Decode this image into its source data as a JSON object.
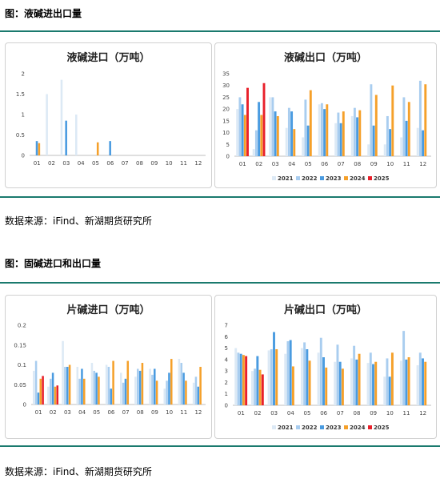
{
  "section1": {
    "title": "图：液碱进出口量",
    "source": "数据来源：iFind、新湖期货研究所"
  },
  "section2": {
    "title": "图：固碱进口和出口量",
    "source": "数据来源：iFind、新湖期货研究所"
  },
  "series_colors": {
    "2021": "#dce9f5",
    "2022": "#a9cdef",
    "2023": "#4a9be0",
    "2024": "#f5a02a",
    "2025": "#e8202a"
  },
  "chart_data": [
    {
      "type": "bar",
      "title": "液碱进口（万吨）",
      "categories": [
        "01",
        "02",
        "03",
        "04",
        "05",
        "06",
        "07",
        "08",
        "09",
        "10",
        "11",
        "12"
      ],
      "ylim": [
        0,
        2
      ],
      "yticks": [
        "0",
        "0.5",
        "1",
        "1.5",
        "2"
      ],
      "series": [
        {
          "name": "2021",
          "values": [
            0,
            1.5,
            1.85,
            1.0,
            0,
            0,
            0,
            0,
            0,
            0,
            0,
            0
          ]
        },
        {
          "name": "2022",
          "values": [
            0,
            0,
            0,
            0,
            0,
            0,
            0,
            0,
            0,
            0,
            0,
            0
          ]
        },
        {
          "name": "2023",
          "values": [
            0.35,
            0,
            0.85,
            0,
            0,
            0.35,
            0,
            0,
            0,
            0,
            0,
            0
          ]
        },
        {
          "name": "2024",
          "values": [
            0.3,
            0,
            0,
            0,
            0.32,
            0,
            0,
            0,
            0,
            0,
            0,
            0
          ]
        },
        {
          "name": "2025",
          "values": [
            0,
            0,
            0,
            0,
            0,
            0,
            0,
            0,
            0,
            0,
            0,
            0
          ]
        }
      ]
    },
    {
      "type": "bar",
      "title": "液碱出口（万吨）",
      "categories": [
        "01",
        "02",
        "03",
        "04",
        "05",
        "06",
        "07",
        "08",
        "09",
        "10",
        "11",
        "12"
      ],
      "ylim": [
        0,
        35
      ],
      "yticks": [
        "0",
        "5",
        "10",
        "15",
        "20",
        "25",
        "30",
        "35"
      ],
      "legend": [
        "2021",
        "2022",
        "2023",
        "2024",
        "2025"
      ],
      "series": [
        {
          "name": "2021",
          "values": [
            20,
            3,
            25,
            12,
            8,
            22,
            14,
            17,
            5,
            5,
            8,
            12
          ]
        },
        {
          "name": "2022",
          "values": [
            25,
            11,
            25,
            20.5,
            24,
            22.5,
            18.5,
            20.5,
            30.5,
            17,
            25,
            32
          ]
        },
        {
          "name": "2023",
          "values": [
            22,
            23,
            19,
            19,
            13,
            20,
            14,
            16.5,
            13,
            11.5,
            15,
            11
          ]
        },
        {
          "name": "2024",
          "values": [
            17.5,
            17.5,
            17,
            11.5,
            28,
            22,
            19,
            19.5,
            26,
            30,
            23,
            30.5
          ]
        },
        {
          "name": "2025",
          "values": [
            29,
            31,
            0,
            0,
            0,
            0,
            0,
            0,
            0,
            0,
            0,
            0
          ]
        }
      ]
    },
    {
      "type": "bar",
      "title": "片碱进口（万吨）",
      "categories": [
        "01",
        "02",
        "03",
        "04",
        "05",
        "06",
        "07",
        "08",
        "09",
        "10",
        "11",
        "12"
      ],
      "ylim": [
        0,
        0.2
      ],
      "yticks": [
        "0",
        "0.05",
        "0.1",
        "0.15",
        "0.2"
      ],
      "series": [
        {
          "name": "2021",
          "values": [
            0.085,
            0.045,
            0.16,
            0.095,
            0.105,
            0.1,
            0.08,
            0.07,
            0.09,
            0.04,
            0.115,
            0.055
          ]
        },
        {
          "name": "2022",
          "values": [
            0.11,
            0.065,
            0.095,
            0.065,
            0.085,
            0.095,
            0.055,
            0.09,
            0.075,
            0.06,
            0.105,
            0.07
          ]
        },
        {
          "name": "2023",
          "values": [
            0.03,
            0.08,
            0.095,
            0.09,
            0.08,
            0.04,
            0.065,
            0.085,
            0.09,
            0.08,
            0.08,
            0.045
          ]
        },
        {
          "name": "2024",
          "values": [
            0.065,
            0.045,
            0.1,
            0.065,
            0.07,
            0.11,
            0.11,
            0.105,
            0.06,
            0.115,
            0.06,
            0.095
          ]
        },
        {
          "name": "2025",
          "values": [
            0.072,
            0.048,
            0,
            0,
            0,
            0,
            0,
            0,
            0,
            0,
            0,
            0
          ]
        }
      ]
    },
    {
      "type": "bar",
      "title": "片碱出口（万吨）",
      "categories": [
        "01",
        "02",
        "03",
        "04",
        "05",
        "06",
        "07",
        "08",
        "09",
        "10",
        "11",
        "12"
      ],
      "ylim": [
        0,
        7
      ],
      "yticks": [
        "0",
        "1",
        "2",
        "3",
        "4",
        "5",
        "6",
        "7"
      ],
      "legend": [
        "2021",
        "2022",
        "2023",
        "2024",
        "2025"
      ],
      "series": [
        {
          "name": "2021",
          "values": [
            5,
            3,
            4.8,
            4.5,
            5,
            4.6,
            3.8,
            4.1,
            3.7,
            2.5,
            3.9,
            3.5
          ]
        },
        {
          "name": "2022",
          "values": [
            4.6,
            3.2,
            4.9,
            5.6,
            5.5,
            5.9,
            5.3,
            5.2,
            4.6,
            4.1,
            6.5,
            4.6
          ]
        },
        {
          "name": "2023",
          "values": [
            4.5,
            4.3,
            6.4,
            5.7,
            4.9,
            4.2,
            3.8,
            4.0,
            3.6,
            2.5,
            4.0,
            4.1
          ]
        },
        {
          "name": "2024",
          "values": [
            4.4,
            3.1,
            4.9,
            3.4,
            3.9,
            3.3,
            3.2,
            4.5,
            3.8,
            4.6,
            4.2,
            3.8
          ]
        },
        {
          "name": "2025",
          "values": [
            4.3,
            2.7,
            0,
            0,
            0,
            0,
            0,
            0,
            0,
            0,
            0,
            0
          ]
        }
      ]
    }
  ]
}
